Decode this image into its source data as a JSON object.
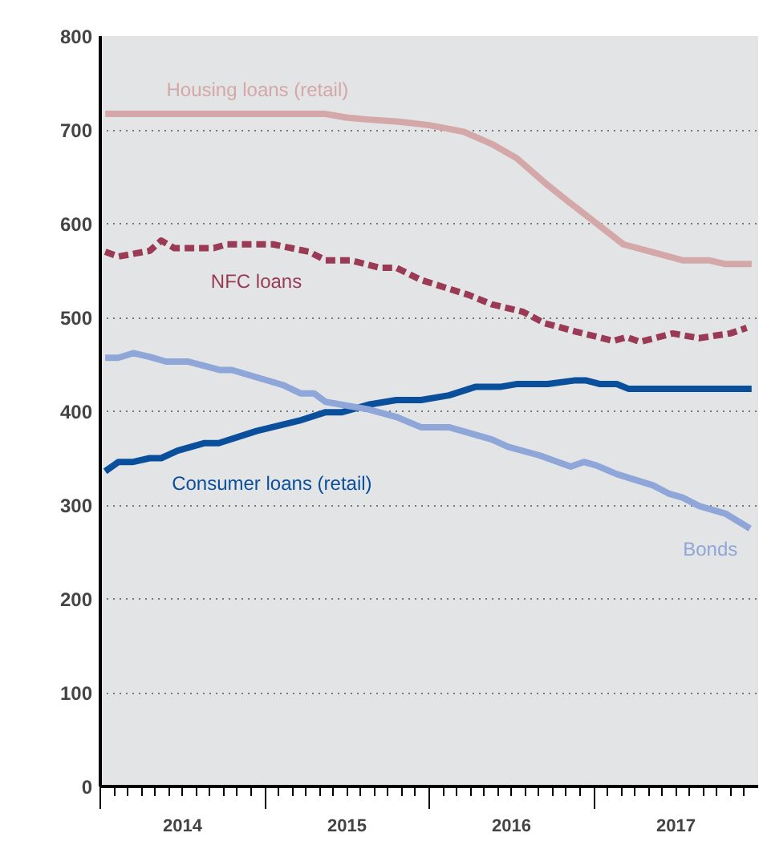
{
  "chart_data": {
    "type": "line",
    "xlim": [
      2014,
      2018
    ],
    "ylim": [
      0,
      800
    ],
    "yticks": [
      0,
      100,
      200,
      300,
      400,
      500,
      600,
      700,
      800
    ],
    "xticks": [
      {
        "value": 2014,
        "label": null
      },
      {
        "value": 2014.5,
        "label": "2014"
      },
      {
        "value": 2015,
        "label": null
      },
      {
        "value": 2015.5,
        "label": "2015"
      },
      {
        "value": 2016,
        "label": null
      },
      {
        "value": 2016.5,
        "label": "2016"
      },
      {
        "value": 2017,
        "label": null
      },
      {
        "value": 2017.5,
        "label": "2017"
      }
    ],
    "grid": "y",
    "marker": "none",
    "series": [
      {
        "name": "Housing loans (retail)",
        "color": "#d4a8a8",
        "x": [
          2014.03,
          2014.5,
          2015.0,
          2015.37,
          2015.5,
          2015.63,
          2015.8,
          2016.0,
          2016.21,
          2016.38,
          2016.53,
          2016.7,
          2016.85,
          2016.99,
          2017.18,
          2017.35,
          2017.54,
          2017.7,
          2017.8,
          2017.96
        ],
        "values": [
          717,
          717,
          717,
          717,
          713,
          711,
          709,
          705,
          698,
          685,
          670,
          644,
          623,
          604,
          578,
          570,
          561,
          561,
          557,
          557
        ]
      },
      {
        "name": "NFC loans",
        "color": "#9b3a55",
        "line_style": "dashed",
        "x": [
          2014.03,
          2014.11,
          2014.3,
          2014.37,
          2014.45,
          2014.69,
          2014.77,
          2015.05,
          2015.27,
          2015.37,
          2015.52,
          2015.7,
          2015.8,
          2015.95,
          2016.24,
          2016.38,
          2016.57,
          2016.7,
          2016.89,
          2017.12,
          2017.2,
          2017.28,
          2017.48,
          2017.64,
          2017.83,
          2017.93
        ],
        "values": [
          570,
          565,
          571,
          582,
          574,
          574,
          578,
          578,
          570,
          561,
          561,
          553,
          553,
          540,
          524,
          514,
          506,
          494,
          485,
          475,
          479,
          474,
          483,
          478,
          483,
          489
        ]
      },
      {
        "name": "Consumer loans (retail)",
        "color": "#0a4f9c",
        "x": [
          2014.03,
          2014.11,
          2014.2,
          2014.3,
          2014.37,
          2014.47,
          2014.63,
          2014.72,
          2014.95,
          2015.21,
          2015.37,
          2015.47,
          2015.63,
          2015.8,
          2015.95,
          2016.12,
          2016.28,
          2016.43,
          2016.53,
          2016.72,
          2016.89,
          2016.95,
          2017.04,
          2017.14,
          2017.21,
          2017.96
        ],
        "values": [
          336,
          346,
          346,
          350,
          350,
          358,
          366,
          366,
          379,
          390,
          399,
          399,
          407,
          412,
          412,
          417,
          426,
          426,
          429,
          429,
          433,
          433,
          429,
          429,
          424,
          424
        ]
      },
      {
        "name": "Bonds",
        "color": "#8fa6d8",
        "x": [
          2014.03,
          2014.11,
          2014.2,
          2014.3,
          2014.4,
          2014.53,
          2014.73,
          2014.8,
          2015.11,
          2015.22,
          2015.3,
          2015.37,
          2015.63,
          2015.8,
          2015.95,
          2016.12,
          2016.38,
          2016.48,
          2016.67,
          2016.86,
          2016.94,
          2017.02,
          2017.14,
          2017.36,
          2017.46,
          2017.54,
          2017.64,
          2017.8,
          2017.95
        ],
        "values": [
          457,
          457,
          462,
          458,
          453,
          453,
          444,
          444,
          428,
          419,
          419,
          410,
          402,
          394,
          383,
          383,
          370,
          362,
          353,
          341,
          346,
          342,
          333,
          321,
          312,
          308,
          299,
          291,
          275
        ]
      }
    ]
  }
}
